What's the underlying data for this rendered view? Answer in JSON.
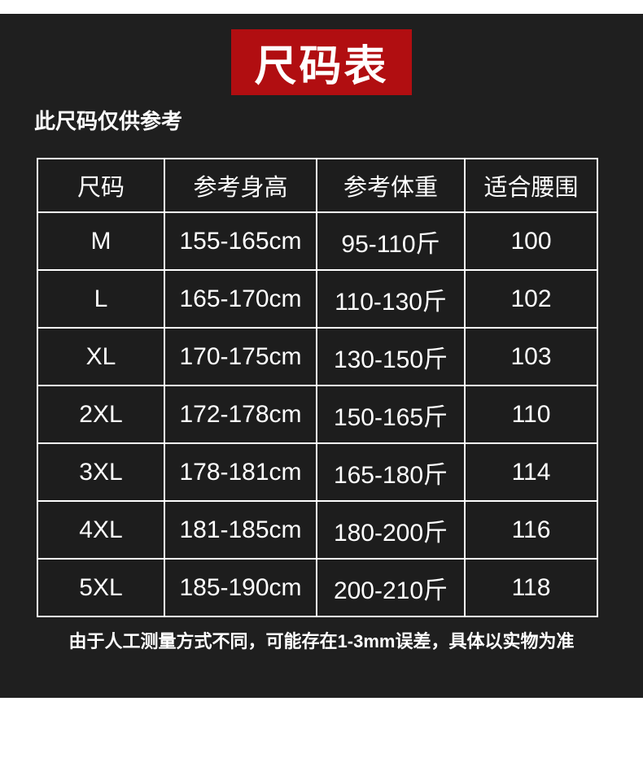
{
  "banner": {
    "title": "尺码表"
  },
  "subtitle": "此尺码仅供参考",
  "size_table": {
    "headers": [
      "尺码",
      "参考身高",
      "参考体重",
      "适合腰围"
    ],
    "rows": [
      [
        "M",
        "155-165cm",
        "95-110斤",
        "100"
      ],
      [
        "L",
        "165-170cm",
        "110-130斤",
        "102"
      ],
      [
        "XL",
        "170-175cm",
        "130-150斤",
        "103"
      ],
      [
        "2XL",
        "172-178cm",
        "150-165斤",
        "110"
      ],
      [
        "3XL",
        "178-181cm",
        "165-180斤",
        "114"
      ],
      [
        "4XL",
        "181-185cm",
        "180-200斤",
        "116"
      ],
      [
        "5XL",
        "185-190cm",
        "200-210斤",
        "118"
      ]
    ]
  },
  "footnote": "由于人工测量方式不同，可能存在1-3mm误差，具体以实物为准",
  "colors": {
    "page_background": "#ffffff",
    "panel_background": "#1f1f1f",
    "banner_red": "#b10e11",
    "text": "#ffffff",
    "table_border": "#ffffff"
  }
}
